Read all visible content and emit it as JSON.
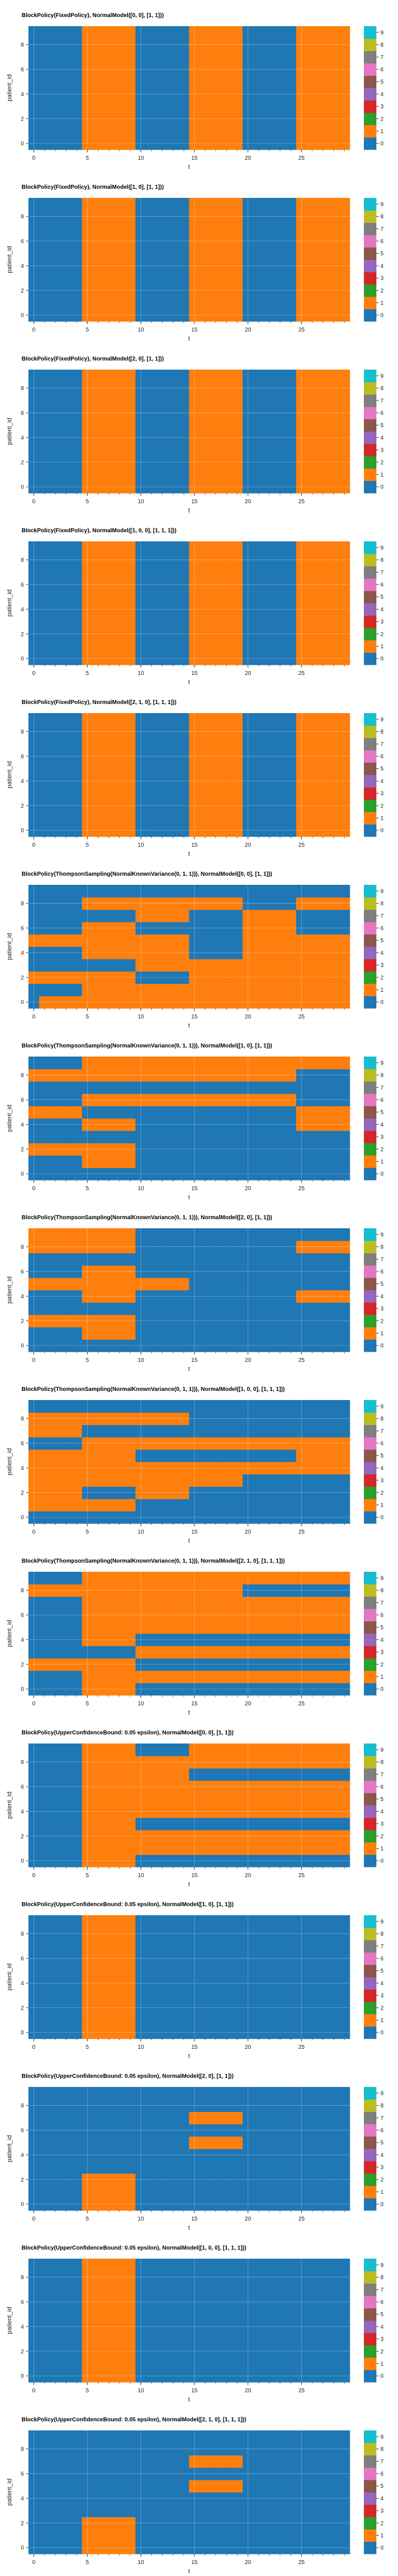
{
  "colors": {
    "palette": [
      "#1f77b4",
      "#ff7f0e",
      "#2ca02c",
      "#d62728",
      "#9467bd",
      "#8c564b",
      "#e377c2",
      "#7f7f7f",
      "#bcbd22",
      "#17becf"
    ],
    "plot_background": "#eaeaf2",
    "grid": "#ffffff"
  },
  "chart_data": [
    {
      "type": "heatmap",
      "title": "BlockPolicy(FixedPolicy), NormalModel([0, 0], [1, 1]))",
      "xlabel": "t",
      "ylabel": "patient_id",
      "x_ticks": [
        0,
        5,
        10,
        15,
        20,
        25
      ],
      "y_ticks": [
        0,
        2,
        4,
        6,
        8
      ],
      "colorbar_ticks": [
        0,
        1,
        2,
        3,
        4,
        5,
        6,
        7,
        8,
        9
      ],
      "n_rows": 10,
      "n_cols": 30,
      "rows": [
        "000001111100000111110000011111",
        "000001111100000111110000011111",
        "000001111100000111110000011111",
        "000001111100000111110000011111",
        "000001111100000111110000011111",
        "000001111100000111110000011111",
        "000001111100000111110000011111",
        "000001111100000111110000011111",
        "000001111100000111110000011111",
        "000001111100000111110000011111"
      ]
    },
    {
      "type": "heatmap",
      "title": "BlockPolicy(FixedPolicy), NormalModel([1, 0], [1, 1]))",
      "xlabel": "t",
      "ylabel": "patient_id",
      "x_ticks": [
        0,
        5,
        10,
        15,
        20,
        25
      ],
      "y_ticks": [
        0,
        2,
        4,
        6,
        8
      ],
      "colorbar_ticks": [
        0,
        1,
        2,
        3,
        4,
        5,
        6,
        7,
        8,
        9
      ],
      "n_rows": 10,
      "n_cols": 30,
      "rows": [
        "000001111100000111110000011111",
        "000001111100000111110000011111",
        "000001111100000111110000011111",
        "000001111100000111110000011111",
        "000001111100000111110000011111",
        "000001111100000111110000011111",
        "000001111100000111110000011111",
        "000001111100000111110000011111",
        "000001111100000111110000011111",
        "000001111100000111110000011111"
      ]
    },
    {
      "type": "heatmap",
      "title": "BlockPolicy(FixedPolicy), NormalModel([2, 0], [1, 1]))",
      "xlabel": "t",
      "ylabel": "patient_id",
      "x_ticks": [
        0,
        5,
        10,
        15,
        20,
        25
      ],
      "y_ticks": [
        0,
        2,
        4,
        6,
        8
      ],
      "colorbar_ticks": [
        0,
        1,
        2,
        3,
        4,
        5,
        6,
        7,
        8,
        9
      ],
      "n_rows": 10,
      "n_cols": 30,
      "rows": [
        "000001111100000111110000011111",
        "000001111100000111110000011111",
        "000001111100000111110000011111",
        "000001111100000111110000011111",
        "000001111100000111110000011111",
        "000001111100000111110000011111",
        "000001111100000111110000011111",
        "000001111100000111110000011111",
        "000001111100000111110000011111",
        "000001111100000111110000011111"
      ]
    },
    {
      "type": "heatmap",
      "title": "BlockPolicy(FixedPolicy), NormalModel([1, 0, 0], [1, 1, 1]))",
      "xlabel": "t",
      "ylabel": "patient_id",
      "x_ticks": [
        0,
        5,
        10,
        15,
        20,
        25
      ],
      "y_ticks": [
        0,
        2,
        4,
        6,
        8
      ],
      "colorbar_ticks": [
        0,
        1,
        2,
        3,
        4,
        5,
        6,
        7,
        8,
        9
      ],
      "n_rows": 10,
      "n_cols": 30,
      "rows": [
        "000001111100000111110000011111",
        "000001111100000111110000011111",
        "000001111100000111110000011111",
        "000001111100000111110000011111",
        "000001111100000111110000011111",
        "000001111100000111110000011111",
        "000001111100000111110000011111",
        "000001111100000111110000011111",
        "000001111100000111110000011111",
        "000001111100000111110000011111"
      ]
    },
    {
      "type": "heatmap",
      "title": "BlockPolicy(FixedPolicy), NormalModel([2, 1, 0], [1, 1, 1]))",
      "xlabel": "t",
      "ylabel": "patient_id",
      "x_ticks": [
        0,
        5,
        10,
        15,
        20,
        25
      ],
      "y_ticks": [
        0,
        2,
        4,
        6,
        8
      ],
      "colorbar_ticks": [
        0,
        1,
        2,
        3,
        4,
        5,
        6,
        7,
        8,
        9
      ],
      "n_rows": 10,
      "n_cols": 30,
      "rows": [
        "000001111100000111110000011111",
        "000001111100000111110000011111",
        "000001111100000111110000011111",
        "000001111100000111110000011111",
        "000001111100000111110000011111",
        "000001111100000111110000011111",
        "000001111100000111110000011111",
        "000001111100000111110000011111",
        "000001111100000111110000011111",
        "000001111100000111110000011111"
      ]
    },
    {
      "type": "heatmap",
      "title": "BlockPolicy(ThompsonSampling(NormalKnownVariance(0, 1, 1))), NormalModel([0, 0], [1, 1]))",
      "xlabel": "t",
      "ylabel": "patient_id",
      "x_ticks": [
        0,
        5,
        10,
        15,
        20,
        25
      ],
      "y_ticks": [
        0,
        2,
        4,
        6,
        8
      ],
      "colorbar_ticks": [
        0,
        1,
        2,
        3,
        4,
        5,
        6,
        7,
        8,
        9
      ],
      "n_rows": 10,
      "n_cols": 30,
      "rows": [
        "011111111111111111111111111111",
        "000001111111111111111111111111",
        "111111111100000111111111111111",
        "000000000011111111111111111111",
        "000001111111111000001111111111",
        "111111111111111000001111111111",
        "000001111100000000001111100000",
        "000000000011111000001111100000",
        "000001111111111111110000011111",
        "000000000000000000000000000000"
      ]
    },
    {
      "type": "heatmap",
      "title": "BlockPolicy(ThompsonSampling(NormalKnownVariance(0, 1, 1))), NormalModel([1, 0], [1, 1]))",
      "xlabel": "t",
      "ylabel": "patient_id",
      "x_ticks": [
        0,
        5,
        10,
        15,
        20,
        25
      ],
      "y_ticks": [
        0,
        2,
        4,
        6,
        8
      ],
      "colorbar_ticks": [
        0,
        1,
        2,
        3,
        4,
        5,
        6,
        7,
        8,
        9
      ],
      "n_rows": 10,
      "n_cols": 30,
      "rows": [
        "000000000000000000000000000000",
        "000001111100000000000000000000",
        "111111111100000000000000000000",
        "000000000000000000000000000000",
        "000001111100000000000000011111",
        "111110000000000000000000011111",
        "000001111111111111111111100000",
        "000000000000000000000000000000",
        "111111111111111111111111100000",
        "000001111111111111111111111111"
      ]
    },
    {
      "type": "heatmap",
      "title": "BlockPolicy(ThompsonSampling(NormalKnownVariance(0, 1, 1))), NormalModel([2, 0], [1, 1]))",
      "xlabel": "t",
      "ylabel": "patient_id",
      "x_ticks": [
        0,
        5,
        10,
        15,
        20,
        25
      ],
      "y_ticks": [
        0,
        2,
        4,
        6,
        8
      ],
      "colorbar_ticks": [
        0,
        1,
        2,
        3,
        4,
        5,
        6,
        7,
        8,
        9
      ],
      "n_rows": 10,
      "n_cols": 30,
      "rows": [
        "000000000000000000000000000000",
        "000001111100000000000000000000",
        "111111111100000000000000000000",
        "000000000000000000000000000000",
        "000001111100000000000000011111",
        "111111111111111000000000000000",
        "000001111100000000000000000000",
        "000000000000000000000000000000",
        "111111111100000000000000011111",
        "111111111100000000000000000000"
      ]
    },
    {
      "type": "heatmap",
      "title": "BlockPolicy(ThompsonSampling(NormalKnownVariance(0, 1, 1))), NormalModel([1, 0, 0], [1, 1, 1]))",
      "xlabel": "t",
      "ylabel": "patient_id",
      "x_ticks": [
        0,
        5,
        10,
        15,
        20,
        25
      ],
      "y_ticks": [
        0,
        2,
        4,
        6,
        8
      ],
      "colorbar_ticks": [
        0,
        1,
        2,
        3,
        4,
        5,
        6,
        7,
        8,
        9
      ],
      "n_rows": 10,
      "n_cols": 30,
      "rows": [
        "000000000000000000000000000000",
        "111111111100000000000000000000",
        "111110000011111000000000000000",
        "111111111111111111110000000000",
        "111111111111111111111111111111",
        "111111111100000000000000011111",
        "000001111111111111111111111111",
        "111110000000000000000000000000",
        "111111111111111000000000000000",
        "000000000000000000000000000000"
      ]
    },
    {
      "type": "heatmap",
      "title": "BlockPolicy(ThompsonSampling(NormalKnownVariance(0, 1, 1))), NormalModel([2, 1, 0], [1, 1, 1]))",
      "xlabel": "t",
      "ylabel": "patient_id",
      "x_ticks": [
        0,
        5,
        10,
        15,
        20,
        25
      ],
      "y_ticks": [
        0,
        2,
        4,
        6,
        8
      ],
      "colorbar_ticks": [
        0,
        1,
        2,
        3,
        4,
        5,
        6,
        7,
        8,
        9
      ],
      "n_rows": 10,
      "n_cols": 30,
      "rows": [
        "000001111100000000000000000000",
        "000001111111111111111111111111",
        "111111111100000000000000000000",
        "000000000011111111111111111111",
        "000001111100000000000000000000",
        "000001111111111111111111111111",
        "000001111111111111111111111111",
        "000001111111111111111111111111",
        "111111111111111111110000000000",
        "000001111111111111111111111111"
      ]
    },
    {
      "type": "heatmap",
      "title": "BlockPolicy(UpperConfidenceBound: 0.05 epsilon), NormalModel([0, 0], [1, 1]))",
      "xlabel": "t",
      "ylabel": "patient_id",
      "x_ticks": [
        0,
        5,
        10,
        15,
        20,
        25
      ],
      "y_ticks": [
        0,
        2,
        4,
        6,
        8
      ],
      "colorbar_ticks": [
        0,
        1,
        2,
        3,
        4,
        5,
        6,
        7,
        8,
        9
      ],
      "n_rows": 10,
      "n_cols": 30,
      "rows": [
        "000001111100000000000000000000",
        "000001111111111111111111111111",
        "000001111111111111111111111111",
        "000001111100000000000000000000",
        "000001111111111111111111111111",
        "000001111111111111111111111111",
        "000001111111111111111111111111",
        "000001111111111000000000000000",
        "000001111111111111111111111111",
        "000001111100000111111111111111"
      ]
    },
    {
      "type": "heatmap",
      "title": "BlockPolicy(UpperConfidenceBound: 0.05 epsilon), NormalModel([1, 0], [1, 1]))",
      "xlabel": "t",
      "ylabel": "patient_id",
      "x_ticks": [
        0,
        5,
        10,
        15,
        20,
        25
      ],
      "y_ticks": [
        0,
        2,
        4,
        6,
        8
      ],
      "colorbar_ticks": [
        0,
        1,
        2,
        3,
        4,
        5,
        6,
        7,
        8,
        9
      ],
      "n_rows": 10,
      "n_cols": 30,
      "rows": [
        "000001111100000000000000000000",
        "000001111100000000000000000000",
        "000001111100000000000000000000",
        "000001111100000000000000000000",
        "000001111100000000000000000000",
        "000001111100000000000000000000",
        "000001111100000000000000000000",
        "000001111100000000000000000000",
        "000001111100000000000000000000",
        "000001111100000000000000000000"
      ]
    },
    {
      "type": "heatmap",
      "title": "BlockPolicy(UpperConfidenceBound: 0.05 epsilon), NormalModel([2, 0], [1, 1]))",
      "xlabel": "t",
      "ylabel": "patient_id",
      "x_ticks": [
        0,
        5,
        10,
        15,
        20,
        25
      ],
      "y_ticks": [
        0,
        2,
        4,
        6,
        8
      ],
      "colorbar_ticks": [
        0,
        1,
        2,
        3,
        4,
        5,
        6,
        7,
        8,
        9
      ],
      "n_rows": 10,
      "n_cols": 30,
      "rows": [
        "000001111100000000000000000000",
        "000001111100000000000000000000",
        "000001111100000000000000000000",
        "000000000000000000000000000000",
        "000000000000000000000000000000",
        "000000000000000111110000000000",
        "000000000000000000000000000000",
        "000000000000000111110000000000",
        "000000000000000000000000000000",
        "000000000000000000000000000000"
      ]
    },
    {
      "type": "heatmap",
      "title": "BlockPolicy(UpperConfidenceBound: 0.05 epsilon), NormalModel([1, 0, 0], [1, 1, 1]))",
      "xlabel": "t",
      "ylabel": "patient_id",
      "x_ticks": [
        0,
        5,
        10,
        15,
        20,
        25
      ],
      "y_ticks": [
        0,
        2,
        4,
        6,
        8
      ],
      "colorbar_ticks": [
        0,
        1,
        2,
        3,
        4,
        5,
        6,
        7,
        8,
        9
      ],
      "n_rows": 10,
      "n_cols": 30,
      "rows": [
        "000001111100000000000000000000",
        "000001111100000000000000000000",
        "000001111100000000000000000000",
        "000001111100000000000000000000",
        "000001111100000000000000000000",
        "000001111100000000000000000000",
        "000001111100000000000000000000",
        "000001111100000000000000000000",
        "000001111100000000000000000000",
        "000001111100000000000000000000"
      ]
    },
    {
      "type": "heatmap",
      "title": "BlockPolicy(UpperConfidenceBound: 0.05 epsilon), NormalModel([2, 1, 0], [1, 1, 1]))",
      "xlabel": "t",
      "ylabel": "patient_id",
      "x_ticks": [
        0,
        5,
        10,
        15,
        20,
        25
      ],
      "y_ticks": [
        0,
        2,
        4,
        6,
        8
      ],
      "colorbar_ticks": [
        0,
        1,
        2,
        3,
        4,
        5,
        6,
        7,
        8,
        9
      ],
      "n_rows": 10,
      "n_cols": 30,
      "rows": [
        "000001111100000000000000000000",
        "000001111100000000000000000000",
        "000001111100000000000000000000",
        "000000000000000000000000000000",
        "000000000000000000000000000000",
        "000000000000000111110000000000",
        "000000000000000000000000000000",
        "000000000000000111110000000000",
        "000000000000000000000000000000",
        "000000000000000000000000000000"
      ]
    }
  ]
}
